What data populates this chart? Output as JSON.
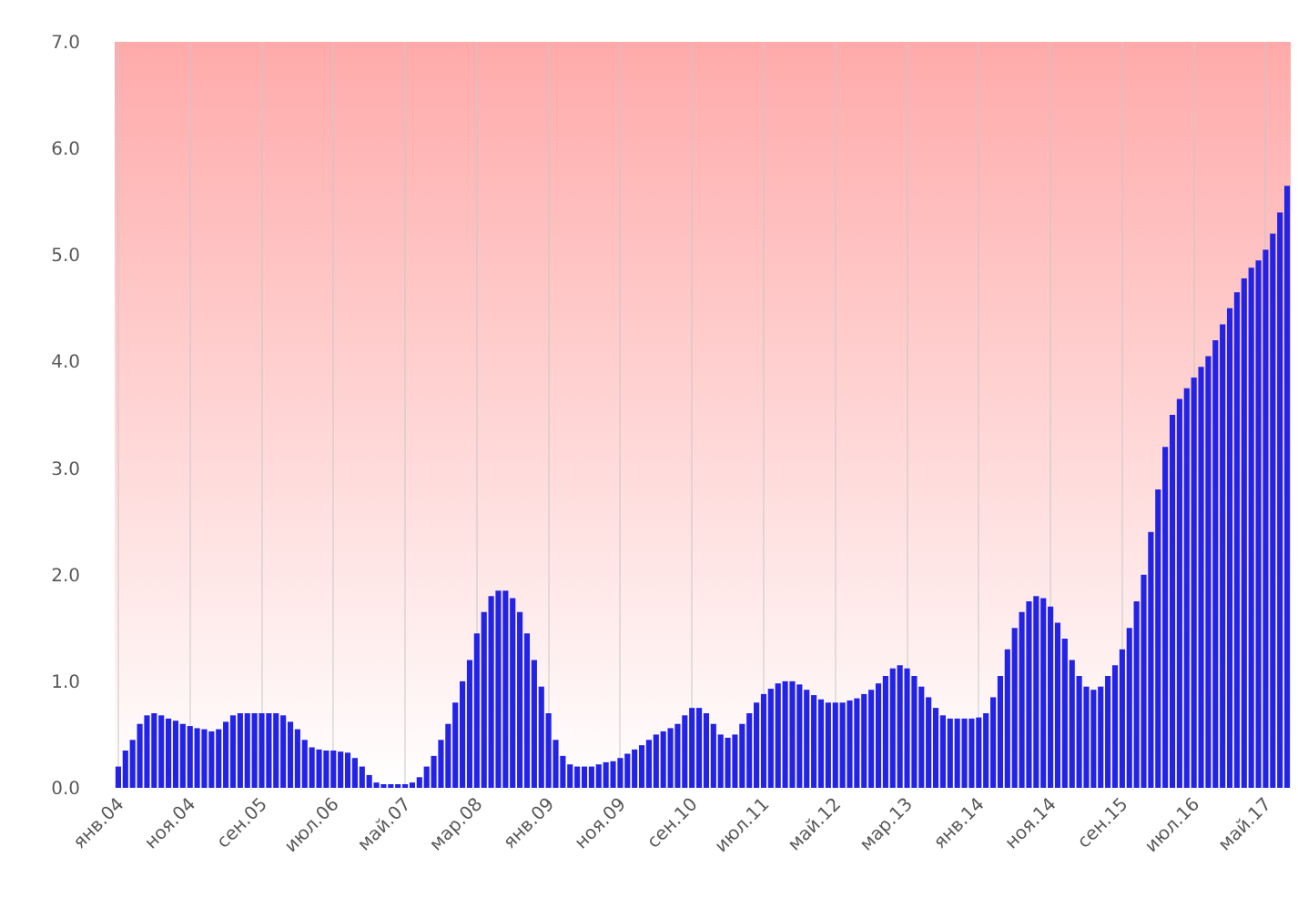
{
  "chart_data": {
    "type": "bar",
    "categories": [
      "янв.04",
      null,
      null,
      null,
      null,
      null,
      null,
      null,
      null,
      null,
      "ноя.04",
      null,
      null,
      null,
      null,
      null,
      null,
      null,
      null,
      null,
      "сен.05",
      null,
      null,
      null,
      null,
      null,
      null,
      null,
      null,
      null,
      "июл.06",
      null,
      null,
      null,
      null,
      null,
      null,
      null,
      null,
      null,
      "май.07",
      null,
      null,
      null,
      null,
      null,
      null,
      null,
      null,
      null,
      "мар.08",
      null,
      null,
      null,
      null,
      null,
      null,
      null,
      null,
      null,
      "янв.09",
      null,
      null,
      null,
      null,
      null,
      null,
      null,
      null,
      null,
      "ноя.09",
      null,
      null,
      null,
      null,
      null,
      null,
      null,
      null,
      null,
      "сен.10",
      null,
      null,
      null,
      null,
      null,
      null,
      null,
      null,
      null,
      "июл.11",
      null,
      null,
      null,
      null,
      null,
      null,
      null,
      null,
      null,
      "май.12",
      null,
      null,
      null,
      null,
      null,
      null,
      null,
      null,
      null,
      "мар.13",
      null,
      null,
      null,
      null,
      null,
      null,
      null,
      null,
      null,
      "янв.14",
      null,
      null,
      null,
      null,
      null,
      null,
      null,
      null,
      null,
      "ноя.14",
      null,
      null,
      null,
      null,
      null,
      null,
      null,
      null,
      null,
      "сен.15",
      null,
      null,
      null,
      null,
      null,
      null,
      null,
      null,
      null,
      "июл.16",
      null,
      null,
      null,
      null,
      null,
      null,
      null,
      null,
      null,
      "май.17",
      null,
      null,
      null
    ],
    "values": [
      0.2,
      0.35,
      0.45,
      0.6,
      0.68,
      0.7,
      0.68,
      0.65,
      0.63,
      0.6,
      0.58,
      0.56,
      0.55,
      0.53,
      0.55,
      0.62,
      0.68,
      0.7,
      0.7,
      0.7,
      0.7,
      0.7,
      0.7,
      0.68,
      0.62,
      0.55,
      0.45,
      0.38,
      0.36,
      0.35,
      0.35,
      0.34,
      0.33,
      0.28,
      0.2,
      0.12,
      0.05,
      0.03,
      0.02,
      0.02,
      0.03,
      0.05,
      0.1,
      0.2,
      0.3,
      0.45,
      0.6,
      0.8,
      1.0,
      1.2,
      1.45,
      1.65,
      1.8,
      1.85,
      1.85,
      1.78,
      1.65,
      1.45,
      1.2,
      0.95,
      0.7,
      0.45,
      0.3,
      0.22,
      0.2,
      0.2,
      0.2,
      0.22,
      0.24,
      0.25,
      0.28,
      0.32,
      0.36,
      0.4,
      0.45,
      0.5,
      0.53,
      0.56,
      0.6,
      0.68,
      0.75,
      0.75,
      0.7,
      0.6,
      0.5,
      0.47,
      0.5,
      0.6,
      0.7,
      0.8,
      0.88,
      0.93,
      0.98,
      1.0,
      1.0,
      0.97,
      0.92,
      0.87,
      0.83,
      0.8,
      0.8,
      0.8,
      0.82,
      0.84,
      0.88,
      0.92,
      0.98,
      1.05,
      1.12,
      1.15,
      1.12,
      1.05,
      0.95,
      0.85,
      0.75,
      0.68,
      0.65,
      0.65,
      0.65,
      0.65,
      0.66,
      0.7,
      0.85,
      1.05,
      1.3,
      1.5,
      1.65,
      1.75,
      1.8,
      1.78,
      1.7,
      1.55,
      1.4,
      1.2,
      1.05,
      0.95,
      0.92,
      0.95,
      1.05,
      1.15,
      1.3,
      1.5,
      1.75,
      2.0,
      2.4,
      2.8,
      3.2,
      3.5,
      3.65,
      3.75,
      3.85,
      3.95,
      4.05,
      4.2,
      4.35,
      4.5,
      4.65,
      4.78,
      4.88,
      4.95,
      5.05,
      5.2,
      5.4,
      5.65
    ],
    "color": "#2323e8",
    "ylim": [
      0,
      7
    ],
    "yticks": [
      {
        "value": 0,
        "label": "0.0"
      },
      {
        "value": 1,
        "label": "1.0"
      },
      {
        "value": 2,
        "label": "2.0"
      },
      {
        "value": 3,
        "label": "3.0"
      },
      {
        "value": 4,
        "label": "4.0"
      },
      {
        "value": 5,
        "label": "5.0"
      },
      {
        "value": 6,
        "label": "6.0"
      },
      {
        "value": 7,
        "label": "7.0"
      }
    ],
    "grid": "x"
  }
}
